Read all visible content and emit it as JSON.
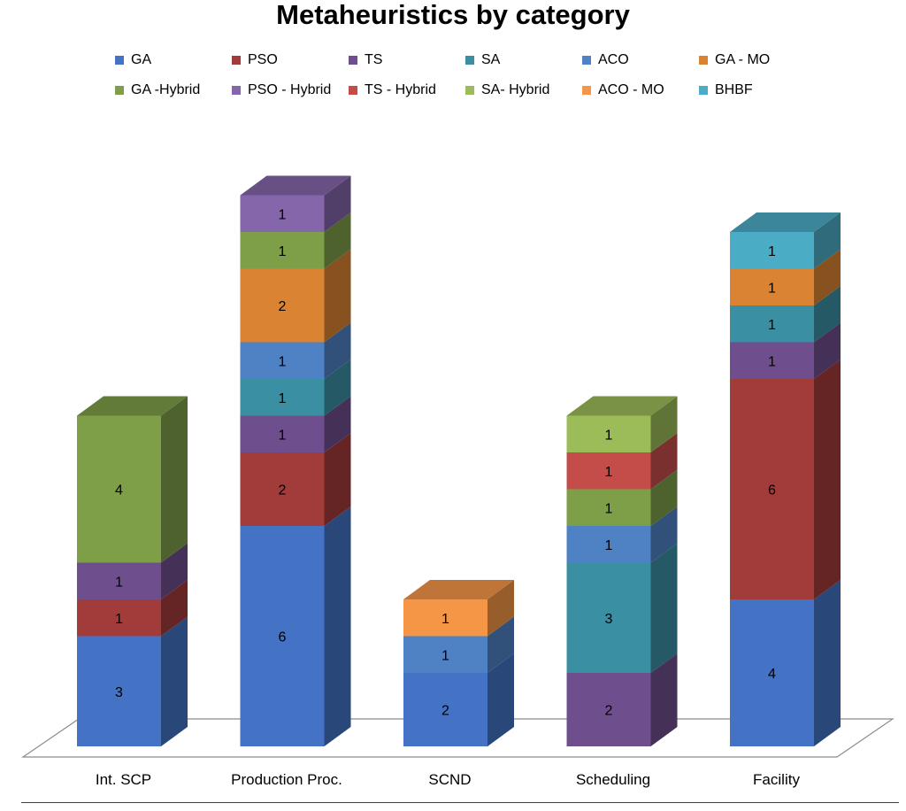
{
  "chart_data": {
    "type": "bar",
    "stacked": true,
    "three_d": true,
    "title": "Metaheuristics by category",
    "legend_position": "top",
    "grid": false,
    "ylim": [
      0,
      16
    ],
    "categories": [
      "Int. SCP",
      "Production Proc.",
      "SCND",
      "Scheduling",
      "Facility"
    ],
    "series": [
      {
        "name": "GA",
        "color": "#4472C4"
      },
      {
        "name": "PSO",
        "color": "#A23C3A"
      },
      {
        "name": "TS",
        "color": "#6F4E8E"
      },
      {
        "name": "SA",
        "color": "#3A8FA3"
      },
      {
        "name": "ACO",
        "color": "#4F81C5"
      },
      {
        "name": "GA - MO",
        "color": "#D98333"
      },
      {
        "name": "GA -Hybrid",
        "color": "#7E9E48"
      },
      {
        "name": "PSO - Hybrid",
        "color": "#8566AA"
      },
      {
        "name": "TS - Hybrid",
        "color": "#C44D4A"
      },
      {
        "name": "SA- Hybrid",
        "color": "#9CBB59"
      },
      {
        "name": "ACO - MO",
        "color": "#F49646"
      },
      {
        "name": "BHBF",
        "color": "#4BACC6"
      }
    ],
    "stacks": [
      [
        {
          "series": "GA",
          "value": 3
        },
        {
          "series": "PSO",
          "value": 1
        },
        {
          "series": "TS",
          "value": 1
        },
        {
          "series": "GA -Hybrid",
          "value": 4
        }
      ],
      [
        {
          "series": "GA",
          "value": 6
        },
        {
          "series": "PSO",
          "value": 2
        },
        {
          "series": "TS",
          "value": 1
        },
        {
          "series": "SA",
          "value": 1
        },
        {
          "series": "ACO",
          "value": 1
        },
        {
          "series": "GA - MO",
          "value": 2
        },
        {
          "series": "GA -Hybrid",
          "value": 1
        },
        {
          "series": "PSO - Hybrid",
          "value": 1
        }
      ],
      [
        {
          "series": "GA",
          "value": 2
        },
        {
          "series": "ACO",
          "value": 1
        },
        {
          "series": "ACO - MO",
          "value": 1
        }
      ],
      [
        {
          "series": "TS",
          "value": 2
        },
        {
          "series": "SA",
          "value": 3
        },
        {
          "series": "ACO",
          "value": 1
        },
        {
          "series": "GA -Hybrid",
          "value": 1
        },
        {
          "series": "TS - Hybrid",
          "value": 1
        },
        {
          "series": "SA- Hybrid",
          "value": 1
        }
      ],
      [
        {
          "series": "GA",
          "value": 4
        },
        {
          "series": "PSO",
          "value": 6
        },
        {
          "series": "TS",
          "value": 1
        },
        {
          "series": "SA",
          "value": 1
        },
        {
          "series": "GA - MO",
          "value": 1
        },
        {
          "series": "BHBF",
          "value": 1
        }
      ]
    ]
  }
}
